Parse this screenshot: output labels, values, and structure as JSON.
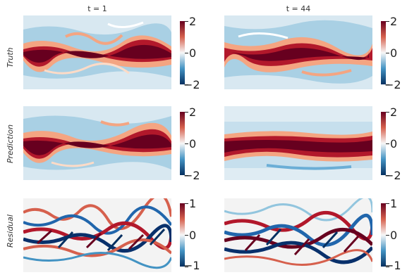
{
  "columns": {
    "left_title": "t = 1",
    "right_title": "t = 44"
  },
  "rows": {
    "truth": "Truth",
    "prediction": "Prediction",
    "residual": "Residual"
  },
  "colorbars": {
    "truth_left": {
      "max": "2",
      "mid": "0",
      "min": "−2"
    },
    "truth_right": {
      "max": "2",
      "mid": "0",
      "min": "−2"
    },
    "prediction_left": {
      "max": "2",
      "mid": "0",
      "min": "−2"
    },
    "prediction_right": {
      "max": "2",
      "mid": "0",
      "min": "−2"
    },
    "residual_left": {
      "max": "1",
      "mid": "0",
      "min": "−1"
    },
    "residual_right": {
      "max": "1",
      "mid": "0",
      "min": "−1"
    }
  },
  "colors": {
    "red": "#8b0a1a",
    "blue": "#08306b",
    "neutral": "#f7f7f7",
    "light_blue": "#a6cfe3"
  }
}
